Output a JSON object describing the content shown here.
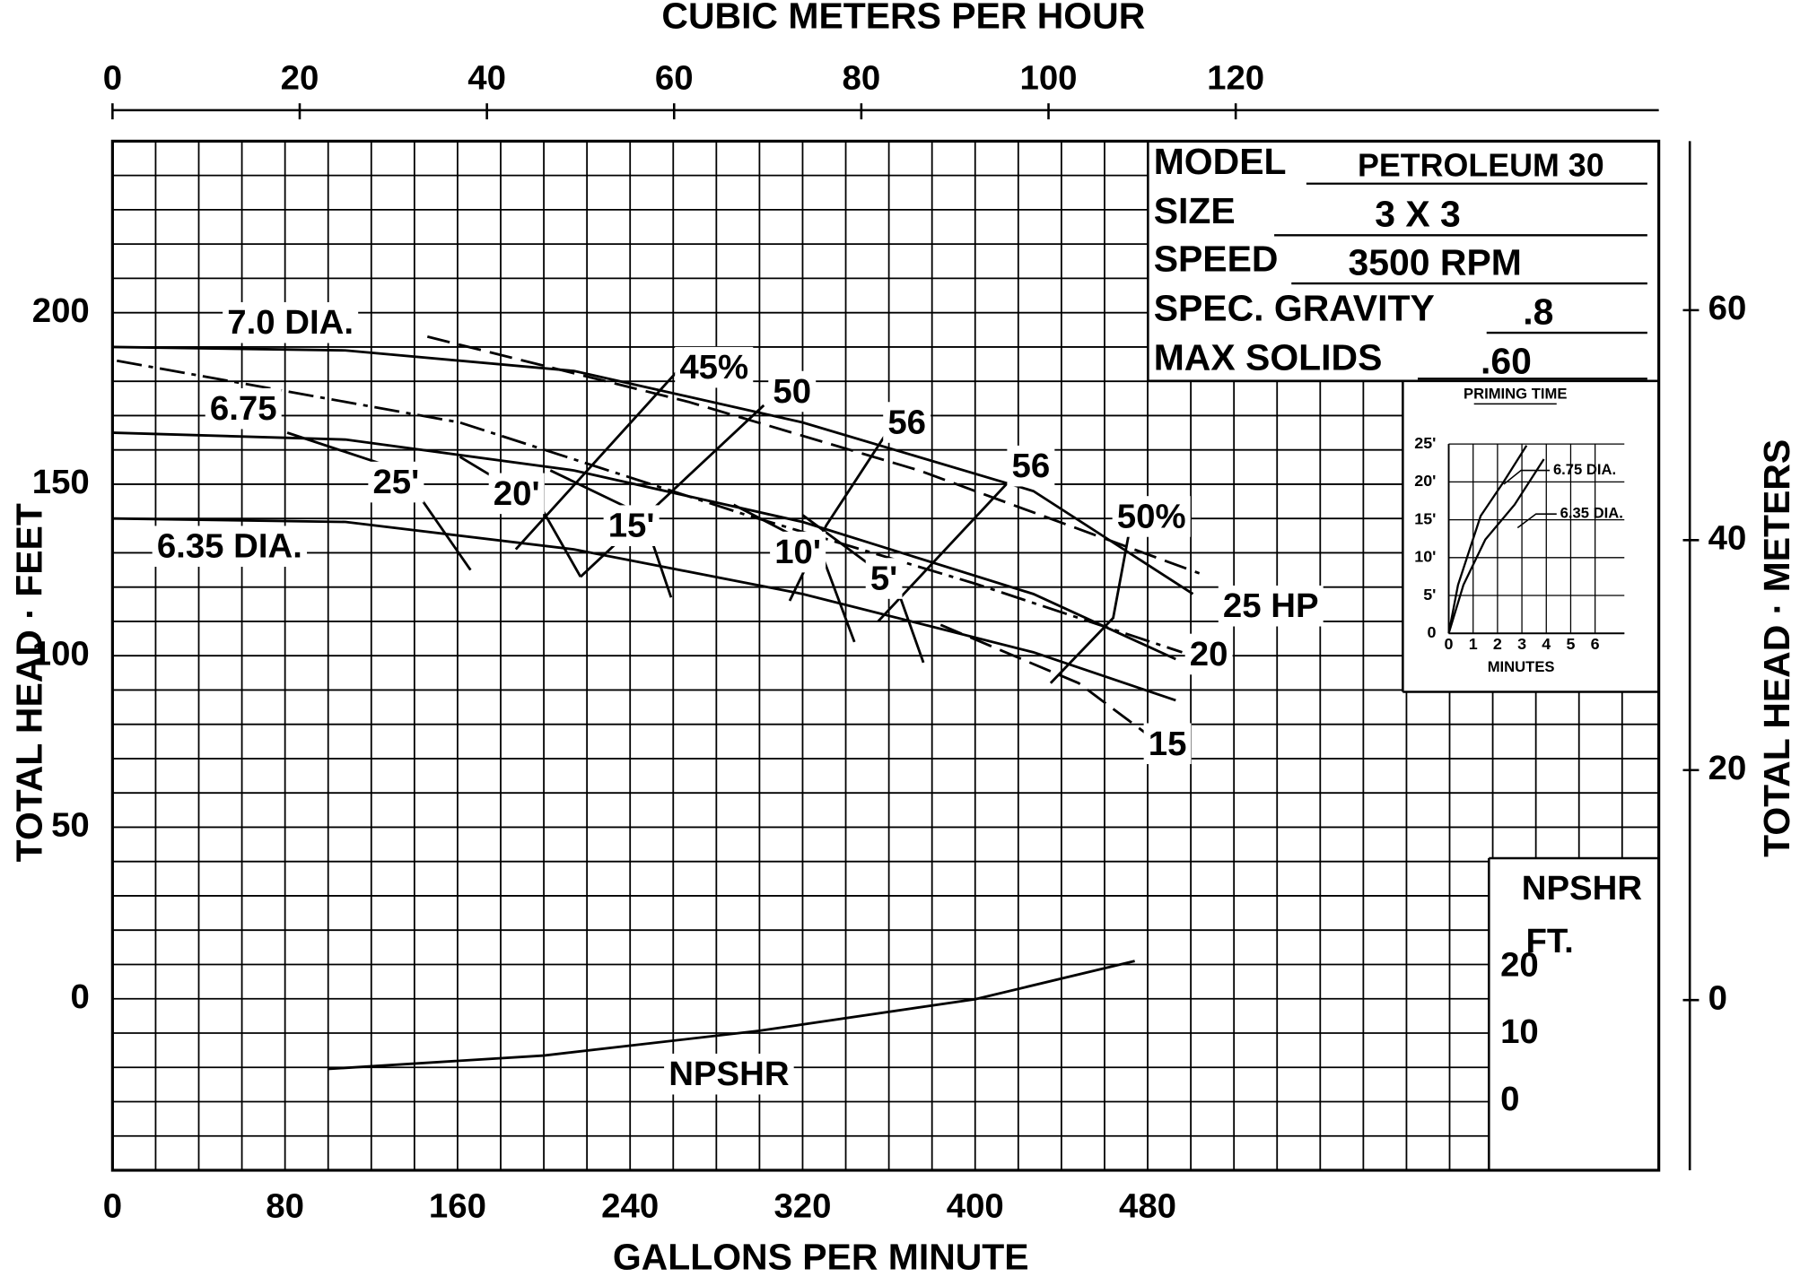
{
  "chart_data": [
    {
      "type": "line",
      "color": "#000000",
      "x_label": "GALLONS PER MINUTE",
      "x2_label": "CUBIC METERS PER HOUR",
      "y_label": "TOTAL HEAD · FEET",
      "y2_label": "TOTAL HEAD · METERS",
      "y3_label": "NPSHR",
      "y3_unit": "FT.",
      "xlim": [
        0,
        717
      ],
      "xticks": [
        0,
        80,
        160,
        240,
        320,
        400,
        480
      ],
      "x2lim": [
        0,
        165.2
      ],
      "x2ticks": [
        0,
        20,
        40,
        60,
        80,
        100,
        120
      ],
      "ylim": [
        -50,
        250
      ],
      "yticks": [
        0,
        50,
        100,
        150,
        200
      ],
      "y2lim": [
        -14.8,
        74.7
      ],
      "y2ticks": [
        0,
        20,
        40,
        60
      ],
      "y3lim": [
        -10.3,
        143.1
      ],
      "y3ticks": [
        0,
        10,
        20
      ],
      "grid": true,
      "x_grid_step": 20,
      "y_grid_step": 10,
      "series": [
        {
          "name": "7.0 DIA.",
          "dash": "solid",
          "x": [
            0,
            108,
            214,
            320,
            427,
            501
          ],
          "values": [
            190,
            189,
            183,
            168,
            148,
            118
          ]
        },
        {
          "name": "6.75",
          "dash": "solid",
          "x": [
            0,
            108,
            214,
            320,
            427,
            493
          ],
          "values": [
            165,
            163,
            154,
            139,
            118,
            99
          ]
        },
        {
          "name": "6.35 DIA.",
          "dash": "solid",
          "x": [
            0,
            108,
            214,
            320,
            427,
            493
          ],
          "values": [
            140,
            139,
            131,
            118,
            101,
            87
          ]
        },
        {
          "name": "45%",
          "dash": "solid",
          "x": [
            187,
            262
          ],
          "values": [
            131,
            183
          ]
        },
        {
          "name": "50",
          "dash": "solid",
          "x": [
            217,
            302
          ],
          "values": [
            123,
            173
          ]
        },
        {
          "name": "56",
          "dash": "solid",
          "x": [
            314,
            331,
            358
          ],
          "values": [
            116,
            138,
            164
          ]
        },
        {
          "name": "56",
          "dash": "solid",
          "x": [
            355,
            416
          ],
          "values": [
            110,
            151
          ]
        },
        {
          "name": "50%",
          "dash": "solid",
          "x": [
            435,
            464,
            472
          ],
          "values": [
            92,
            111,
            138
          ]
        },
        {
          "name": "25 HP",
          "dash": "dashed",
          "x": [
            146,
            267,
            374,
            504
          ],
          "values": [
            193,
            174,
            154,
            124
          ]
        },
        {
          "name": "20",
          "dash": "dashdot",
          "x": [
            2,
            161,
            294,
            400,
            496
          ],
          "values": [
            186,
            168,
            141,
            121,
            101
          ]
        },
        {
          "name": "15",
          "dash": "dashed",
          "x": [
            384,
            448,
            480
          ],
          "values": [
            109,
            92,
            77
          ]
        },
        {
          "name": "25'",
          "dash": "solid",
          "x": [
            81,
            134,
            166
          ],
          "values": [
            165,
            154,
            125
          ]
        },
        {
          "name": "20'",
          "dash": "solid",
          "x": [
            161,
            198,
            217
          ],
          "values": [
            158,
            144,
            123
          ]
        },
        {
          "name": "15'",
          "dash": "solid",
          "x": [
            203,
            246,
            259
          ],
          "values": [
            154,
            141,
            117
          ]
        },
        {
          "name": "10'",
          "dash": "solid",
          "x": [
            288,
            328,
            344
          ],
          "values": [
            144,
            131,
            104
          ]
        },
        {
          "name": "5'",
          "dash": "solid",
          "x": [
            320,
            363,
            376
          ],
          "values": [
            141,
            121,
            98
          ]
        },
        {
          "name": "NPSHR",
          "dash": "solid",
          "axis": "y3",
          "x": [
            100,
            200,
            300,
            400,
            474
          ],
          "values": [
            4.8,
            6.8,
            10.5,
            15.2,
            20.9
          ]
        }
      ]
    },
    {
      "type": "line",
      "color": "#000000",
      "title": "PRIMING TIME",
      "x_label": "MINUTES",
      "xlim": [
        0,
        7.2
      ],
      "xticks": [
        0,
        1,
        2,
        3,
        4,
        5,
        6
      ],
      "ylim": [
        0,
        25
      ],
      "yticks": [
        0,
        {
          "value": 5,
          "label": "5'"
        },
        {
          "value": 10,
          "label": "10'"
        },
        {
          "value": 15,
          "label": "15'"
        },
        {
          "value": 20,
          "label": "20'"
        },
        {
          "value": 25,
          "label": "25'"
        }
      ],
      "grid": true,
      "series": [
        {
          "name": "6.75 DIA.",
          "x": [
            0,
            0.38,
            1.31,
            2.25,
            3.19
          ],
          "values": [
            0,
            6.4,
            15.5,
            20,
            24.8
          ]
        },
        {
          "name": "6.35 DIA.",
          "x": [
            0,
            0.6,
            1.5,
            2.7,
            3.9
          ],
          "values": [
            0,
            6.4,
            12.4,
            17,
            23
          ]
        }
      ]
    }
  ],
  "specs": [
    {
      "label": "MODEL",
      "value": "PETROLEUM 30"
    },
    {
      "label": "SIZE",
      "value": "3 X 3"
    },
    {
      "label": "SPEED",
      "value": "3500 RPM"
    },
    {
      "label": "SPEC. GRAVITY",
      "value": ".8"
    },
    {
      "label": "MAX SOLIDS",
      "value": ".60"
    }
  ]
}
